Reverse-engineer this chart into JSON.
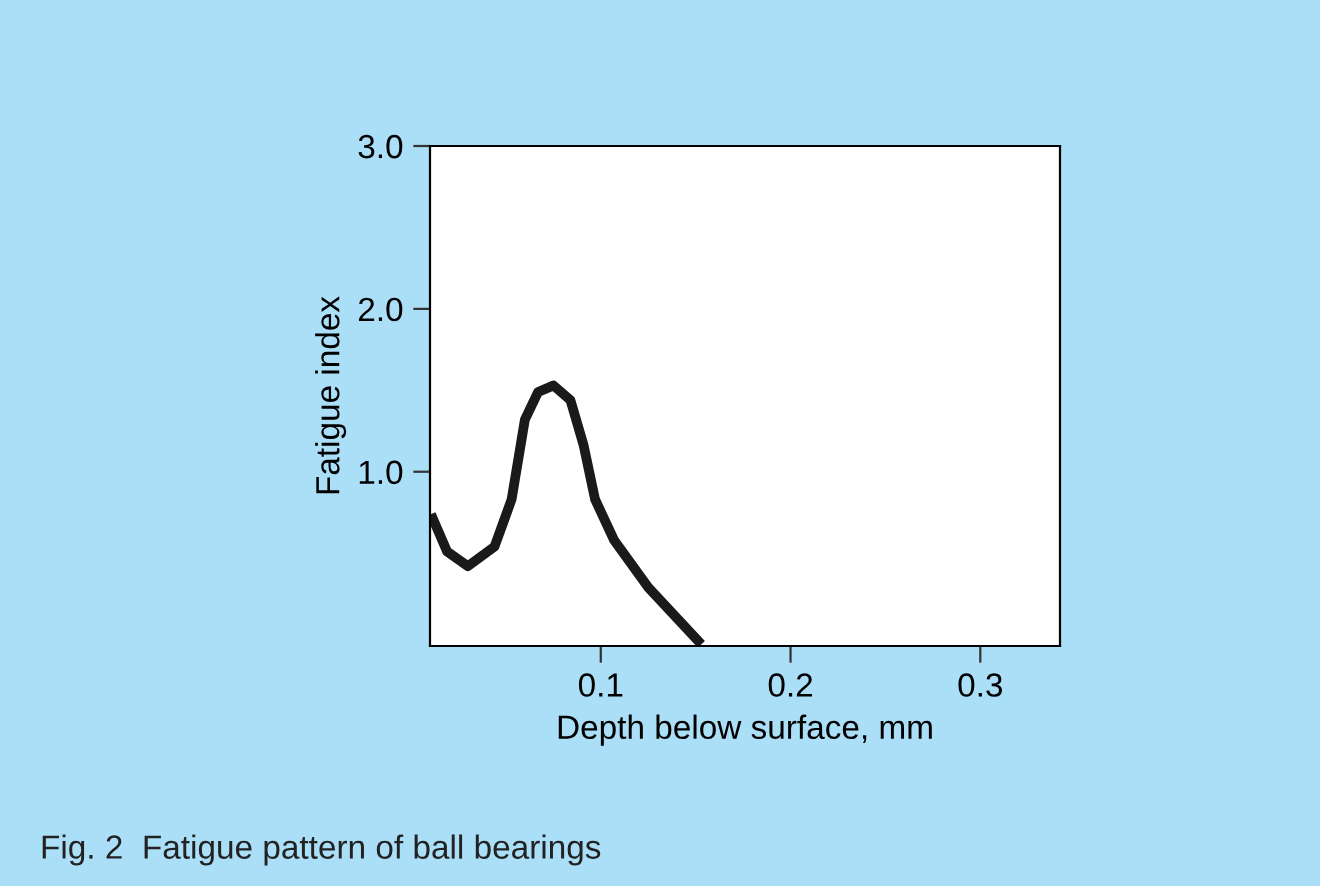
{
  "chart_data": {
    "type": "line",
    "xlabel": "Depth below surface, mm",
    "ylabel": "Fatigue index",
    "annotations": [
      "Fig. 2  Fatigue pattern of ball bearings"
    ],
    "x": [
      0.0105,
      0.019,
      0.03,
      0.044,
      0.053,
      0.06,
      0.067,
      0.075,
      0.084,
      0.091,
      0.097,
      0.107,
      0.125,
      0.153
    ],
    "series": [
      {
        "color": "#1a1a1a",
        "values": [
          0.74,
          0.51,
          0.42,
          0.54,
          0.83,
          1.32,
          1.49,
          1.53,
          1.44,
          1.16,
          0.83,
          0.58,
          0.29,
          -0.06
        ]
      }
    ],
    "xlim": [
      0.01,
      0.342
    ],
    "ylim": [
      -0.07,
      3.0
    ],
    "xticks": [
      0.1,
      0.2,
      0.3
    ],
    "yticks": [
      {
        "value": 1.0,
        "label": "1.0"
      },
      {
        "value": 2.0,
        "label": "2.0"
      },
      {
        "value": 3.0,
        "label": "3.0"
      }
    ],
    "grid": false,
    "legend": false,
    "marker": "none",
    "line_style": "solid"
  }
}
